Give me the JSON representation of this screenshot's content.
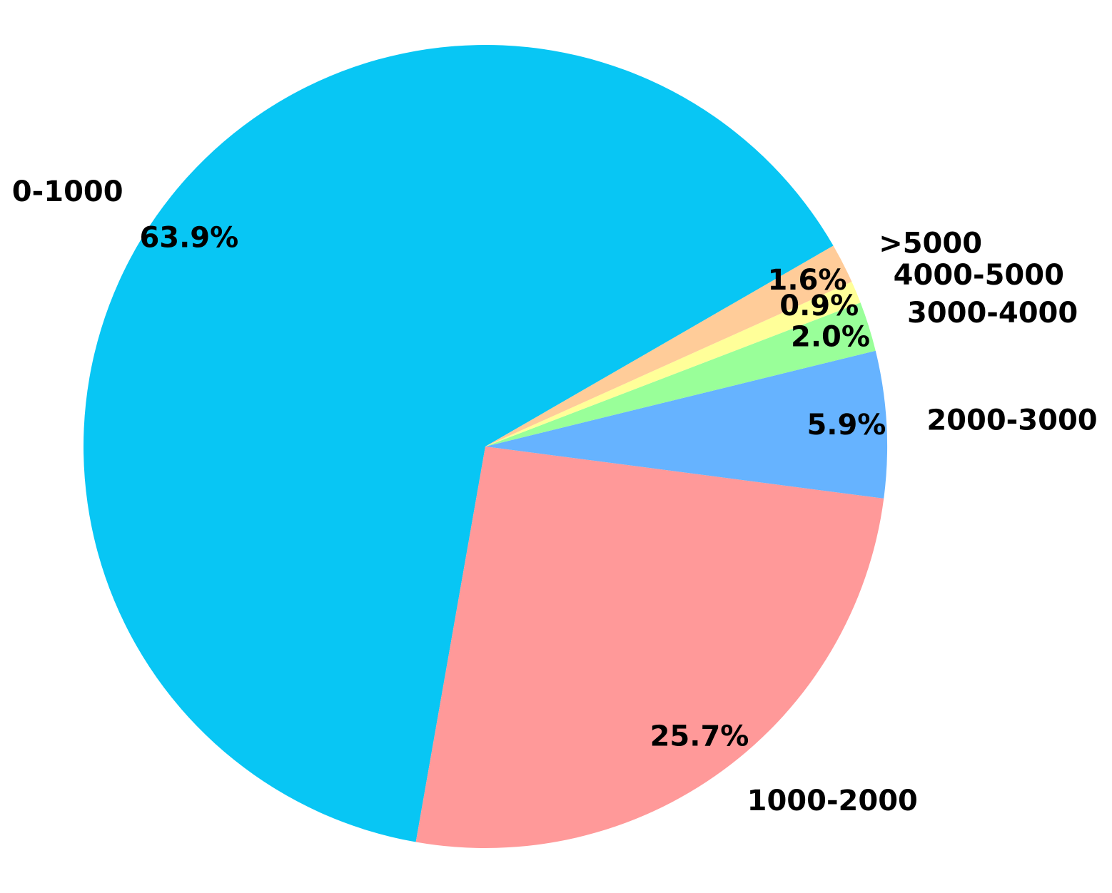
{
  "chart_data": {
    "type": "pie",
    "categories": [
      "0-1000",
      "1000-2000",
      "2000-3000",
      "3000-4000",
      "4000-5000",
      ">5000"
    ],
    "values": [
      63.9,
      25.7,
      5.9,
      2.0,
      0.9,
      1.6
    ],
    "value_labels": [
      "63.9%",
      "25.7%",
      "5.9%",
      "2.0%",
      "0.9%",
      "1.6%"
    ],
    "colors": [
      "#08c6f4",
      "#ff9999",
      "#66b3ff",
      "#99ff99",
      "#ffff99",
      "#ffcc99"
    ]
  }
}
